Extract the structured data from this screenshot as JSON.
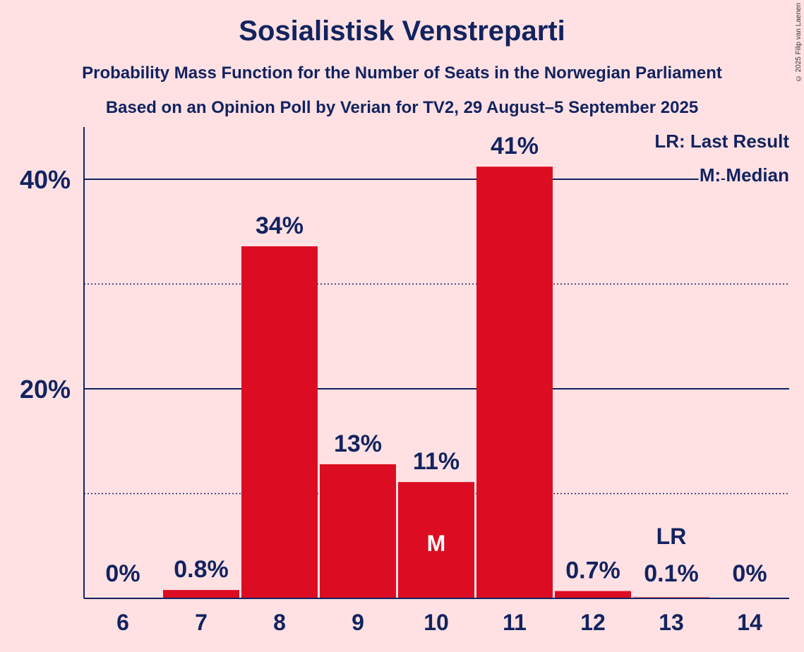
{
  "title": "Sosialistisk Venstreparti",
  "subtitle1": "Probability Mass Function for the Number of Seats in the Norwegian Parliament",
  "subtitle2": "Based on an Opinion Poll by Verian for TV2, 29 August–5 September 2025",
  "copyright": "© 2025 Filip van Laenen",
  "colors": {
    "background": "#FFE1E3",
    "bar": "#DC0D22",
    "text": "#12235F"
  },
  "chart_data": {
    "type": "bar",
    "categories": [
      "6",
      "7",
      "8",
      "9",
      "10",
      "11",
      "12",
      "13",
      "14"
    ],
    "values": [
      0,
      0.8,
      33.6,
      12.8,
      11.1,
      41.2,
      0.7,
      0.1,
      0
    ],
    "labels": [
      "0%",
      "0.8%",
      "34%",
      "13%",
      "11%",
      "41%",
      "0.7%",
      "0.1%",
      "0%"
    ],
    "ylim": [
      0,
      45
    ],
    "yticks": [
      {
        "value": 20,
        "label": "20%"
      },
      {
        "value": 40,
        "label": "40%"
      }
    ],
    "minor_gridlines": [
      10,
      30
    ],
    "median_category": "10",
    "median_marker": "M",
    "last_result_category": "13",
    "last_result_marker": "LR",
    "legend": [
      "LR: Last Result",
      "M: Median"
    ],
    "legend_position": "top-right"
  }
}
